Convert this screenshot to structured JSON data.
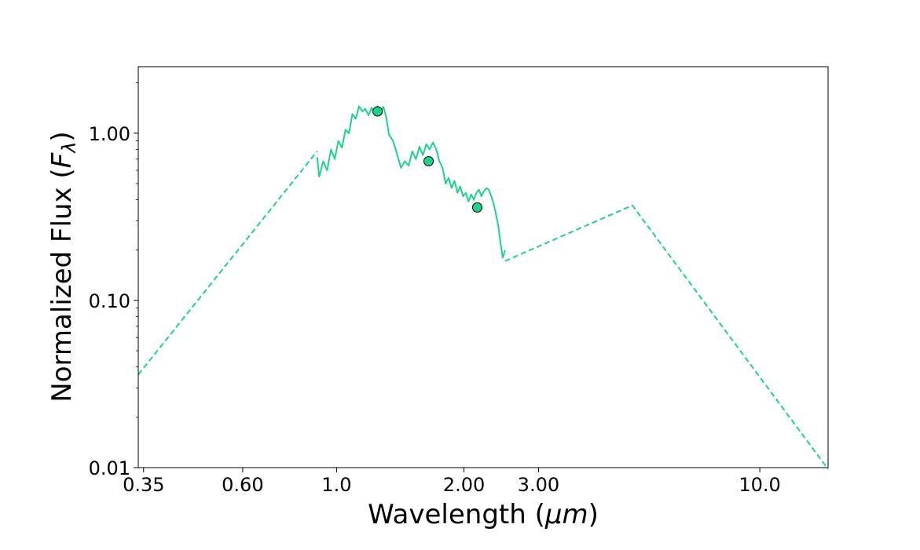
{
  "chart_data": {
    "type": "line",
    "xlabel": {
      "main": "Wavelength (",
      "unit": "μm",
      "close": ")"
    },
    "ylabel": {
      "main": "Normalized Flux  (",
      "symbol": "F",
      "sub": "λ",
      "close": ")"
    },
    "xscale": "log",
    "yscale": "log",
    "xlim": [
      0.34,
      14.5
    ],
    "ylim": [
      0.01,
      2.5
    ],
    "xticks": [
      {
        "value": 0.35,
        "label": "0.35"
      },
      {
        "value": 0.6,
        "label": "0.60"
      },
      {
        "value": 1.0,
        "label": "1.0"
      },
      {
        "value": 2.0,
        "label": "2.00"
      },
      {
        "value": 3.0,
        "label": "3.00"
      },
      {
        "value": 10.0,
        "label": "10.0"
      }
    ],
    "yticks": [
      {
        "value": 0.01,
        "label": "0.01"
      },
      {
        "value": 0.1,
        "label": "0.10"
      },
      {
        "value": 1.0,
        "label": "1.00"
      }
    ],
    "grid": false,
    "color": "#1dd38b",
    "series": [
      {
        "style": "dashed",
        "x": [
          0.34,
          0.9
        ],
        "y": [
          0.036,
          0.78
        ]
      },
      {
        "style": "solid",
        "x": [
          0.9,
          0.91,
          0.93,
          0.95,
          0.97,
          0.99,
          1.01,
          1.03,
          1.05,
          1.07,
          1.09,
          1.11,
          1.13,
          1.15,
          1.17,
          1.19,
          1.21,
          1.23,
          1.25,
          1.27,
          1.29,
          1.31,
          1.33,
          1.36,
          1.39,
          1.42,
          1.45,
          1.48,
          1.51,
          1.54,
          1.57,
          1.6,
          1.63,
          1.66,
          1.69,
          1.72,
          1.75,
          1.78,
          1.81,
          1.84,
          1.87,
          1.9,
          1.93,
          1.96,
          1.99,
          2.02,
          2.05,
          2.08,
          2.11,
          2.14,
          2.17,
          2.2,
          2.23,
          2.26,
          2.29,
          2.32,
          2.35,
          2.38,
          2.41,
          2.44,
          2.47,
          2.5
        ],
        "y": [
          0.72,
          0.55,
          0.68,
          0.6,
          0.8,
          0.7,
          0.9,
          0.82,
          1.05,
          1.0,
          1.3,
          1.22,
          1.45,
          1.35,
          1.4,
          1.28,
          1.42,
          1.3,
          1.45,
          1.35,
          1.44,
          1.25,
          0.98,
          0.9,
          0.75,
          0.62,
          0.68,
          0.64,
          0.78,
          0.7,
          0.83,
          0.74,
          0.86,
          0.8,
          0.88,
          0.8,
          0.68,
          0.62,
          0.5,
          0.54,
          0.47,
          0.52,
          0.44,
          0.48,
          0.42,
          0.44,
          0.39,
          0.43,
          0.4,
          0.44,
          0.46,
          0.42,
          0.45,
          0.47,
          0.46,
          0.42,
          0.38,
          0.33,
          0.28,
          0.22,
          0.18,
          0.2
        ]
      },
      {
        "style": "dashed",
        "x": [
          2.5,
          5.0,
          14.5
        ],
        "y": [
          0.172,
          0.37,
          0.0098
        ]
      }
    ],
    "markers": {
      "x": [
        1.25,
        1.65,
        2.15
      ],
      "y": [
        1.35,
        0.68,
        0.36
      ]
    }
  }
}
